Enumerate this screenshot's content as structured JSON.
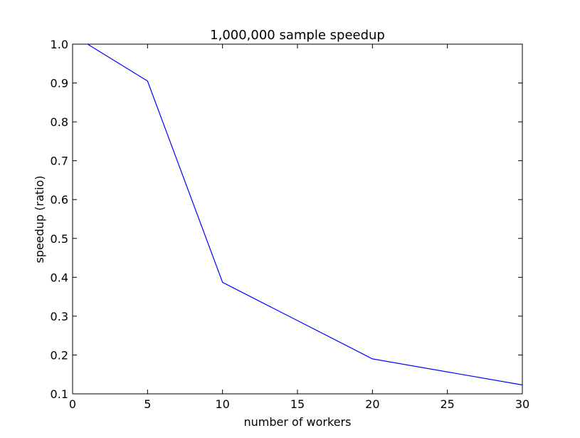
{
  "chart_data": {
    "type": "line",
    "title": "1,000,000 sample speedup",
    "xlabel": "number of workers",
    "ylabel": "speedup (ratio)",
    "xlim": [
      0,
      30
    ],
    "ylim": [
      0.1,
      1.0
    ],
    "xticks": [
      0,
      5,
      10,
      15,
      20,
      25,
      30
    ],
    "yticks": [
      0.1,
      0.2,
      0.3,
      0.4,
      0.5,
      0.6,
      0.7,
      0.8,
      0.9,
      1.0
    ],
    "xtick_labels": [
      "0",
      "5",
      "10",
      "15",
      "20",
      "25",
      "30"
    ],
    "ytick_labels": [
      "0.1",
      "0.2",
      "0.3",
      "0.4",
      "0.5",
      "0.6",
      "0.7",
      "0.8",
      "0.9",
      "1.0"
    ],
    "grid": false,
    "legend": false,
    "series": [
      {
        "color": "#0000ff",
        "x": [
          1,
          5,
          10,
          20,
          30
        ],
        "y": [
          1.0,
          0.905,
          0.387,
          0.19,
          0.123
        ]
      }
    ]
  }
}
